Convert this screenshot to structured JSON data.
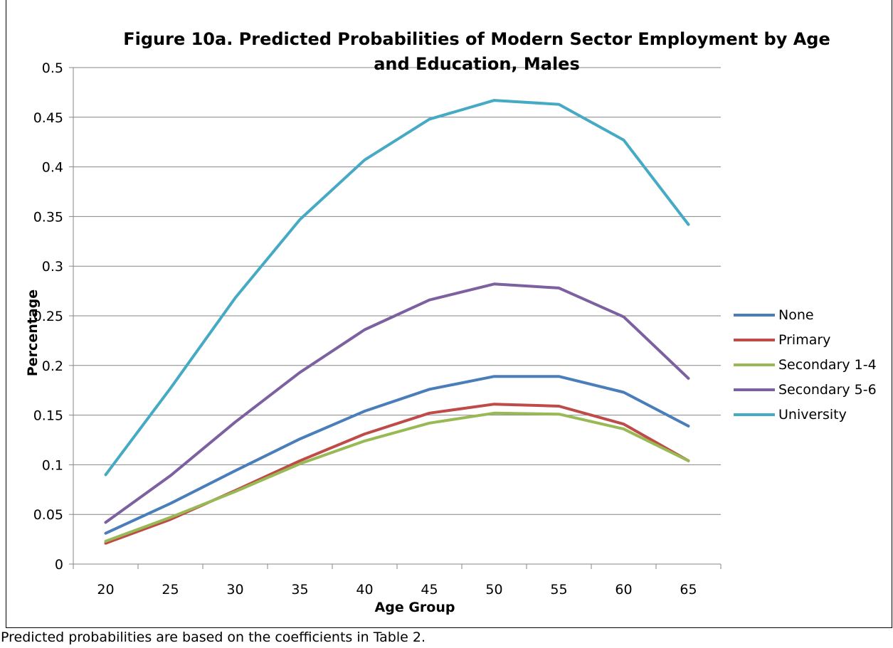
{
  "chart_data": {
    "type": "line",
    "title": "Figure 10a. Predicted Probabilities of Modern Sector Employment by Age\nand Education, Males",
    "xlabel": "Age Group",
    "ylabel": "Percentage",
    "footnote": "Predicted probabilities are based on the coefficients in Table 2.",
    "categories": [
      "20",
      "25",
      "30",
      "35",
      "40",
      "45",
      "50",
      "55",
      "60",
      "65"
    ],
    "y_ticks": [
      "0",
      "0.05",
      "0.1",
      "0.15",
      "0.2",
      "0.25",
      "0.3",
      "0.35",
      "0.4",
      "0.45",
      "0.5"
    ],
    "ylim": [
      0,
      0.5
    ],
    "grid": "horizontal",
    "legend_position": "right",
    "series": [
      {
        "name": "None",
        "color": "#4a7ebb",
        "values": [
          0.031,
          0.061,
          0.094,
          0.126,
          0.154,
          0.176,
          0.189,
          0.189,
          0.173,
          0.139
        ]
      },
      {
        "name": "Primary",
        "color": "#be4b48",
        "values": [
          0.021,
          0.045,
          0.074,
          0.104,
          0.131,
          0.152,
          0.161,
          0.159,
          0.141,
          0.104
        ]
      },
      {
        "name": "Secondary 1-4",
        "color": "#98b954",
        "values": [
          0.023,
          0.047,
          0.073,
          0.101,
          0.124,
          0.142,
          0.152,
          0.151,
          0.136,
          0.104
        ]
      },
      {
        "name": "Secondary 5-6",
        "color": "#7d60a0",
        "values": [
          0.042,
          0.089,
          0.143,
          0.193,
          0.236,
          0.266,
          0.282,
          0.278,
          0.249,
          0.187
        ]
      },
      {
        "name": "University",
        "color": "#46aac4",
        "values": [
          0.09,
          0.177,
          0.268,
          0.347,
          0.407,
          0.448,
          0.467,
          0.463,
          0.427,
          0.342
        ]
      }
    ]
  }
}
